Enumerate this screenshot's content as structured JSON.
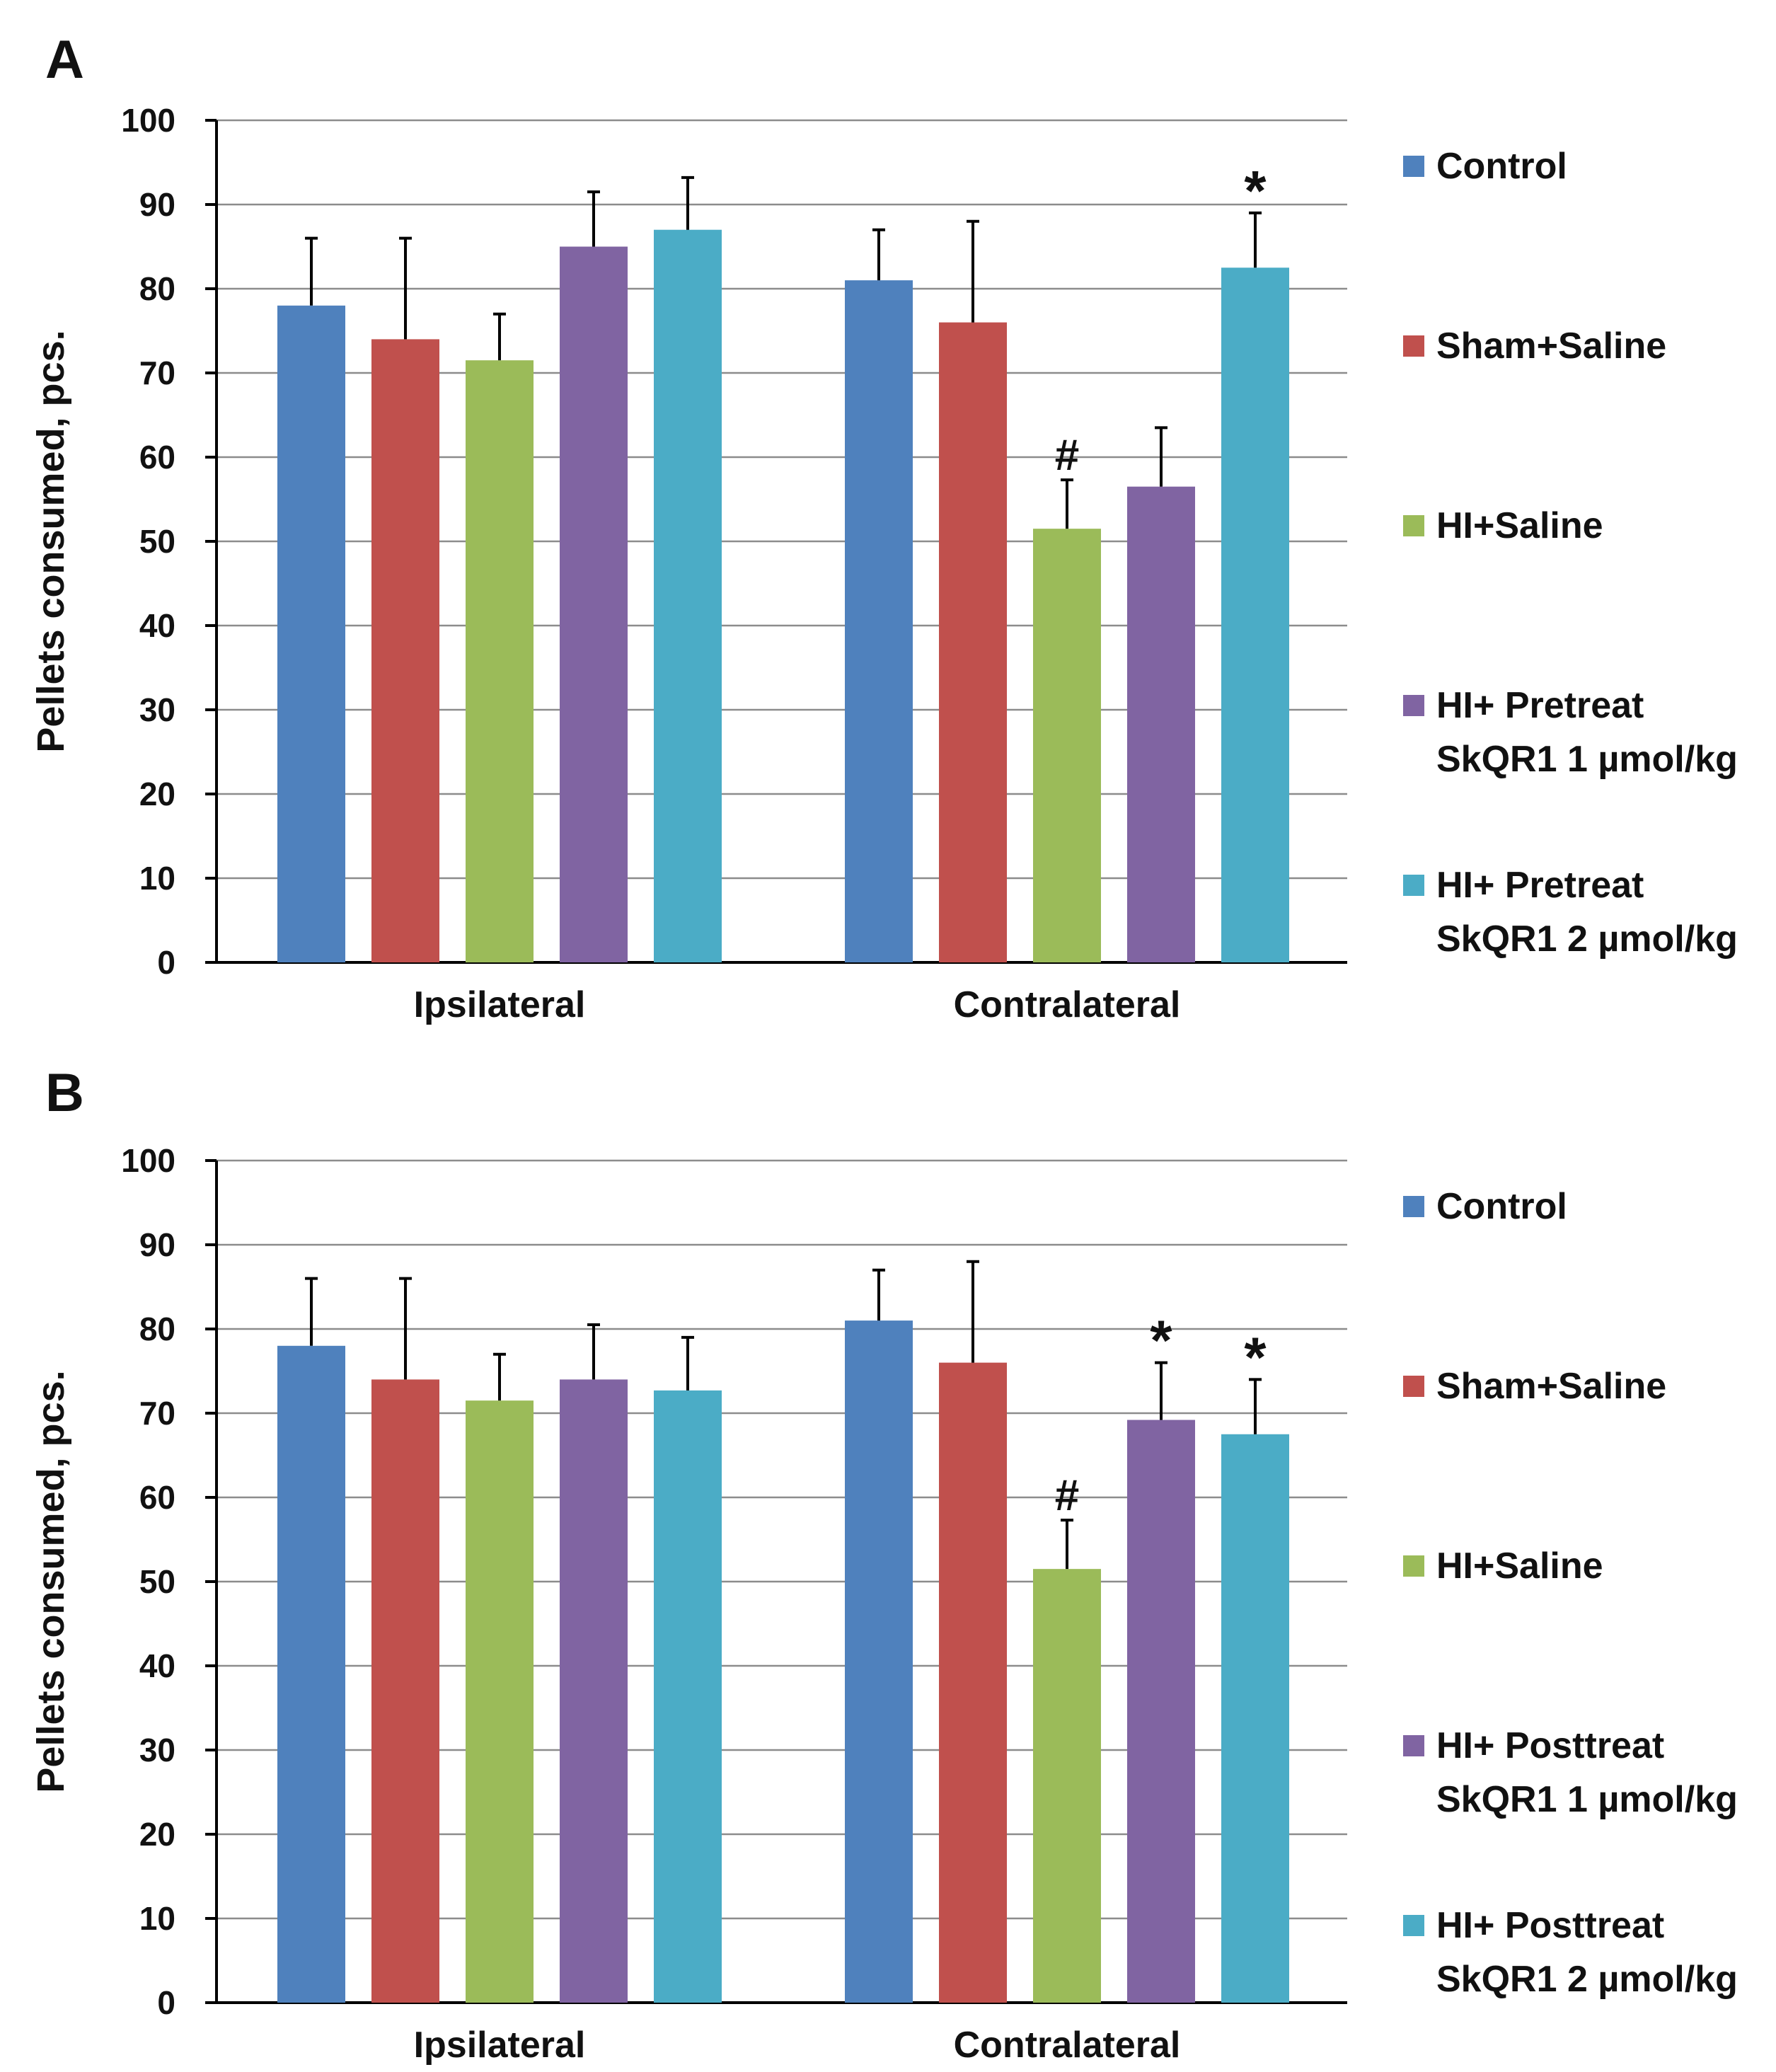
{
  "chart_data": [
    {
      "panel": "A",
      "type": "bar",
      "ylabel": "Pellets consumed, pcs.",
      "ylim": [
        0,
        100
      ],
      "yticks": [
        0,
        10,
        20,
        30,
        40,
        50,
        60,
        70,
        80,
        90,
        100
      ],
      "grid": true,
      "categories": [
        "Ipsilateral",
        "Contralateral"
      ],
      "series": [
        {
          "name": "Control",
          "color": "#4F81BD",
          "values": [
            78,
            81
          ],
          "errors": [
            8,
            6
          ],
          "marks": [
            "",
            ""
          ]
        },
        {
          "name": "Sham+Saline",
          "color": "#C0504D",
          "values": [
            74,
            76
          ],
          "errors": [
            12,
            12
          ],
          "marks": [
            "",
            ""
          ]
        },
        {
          "name": "HI+Saline",
          "color": "#9BBB59",
          "values": [
            71.5,
            51.5
          ],
          "errors": [
            5.5,
            5.8
          ],
          "marks": [
            "",
            "#"
          ]
        },
        {
          "name": "HI+ Pretreat SkQR1 1 µmol/kg",
          "legend_lines": [
            "HI+ Pretreat",
            "SkQR1 1 µmol/kg"
          ],
          "color": "#8064A2",
          "values": [
            85,
            56.5
          ],
          "errors": [
            6.5,
            7
          ],
          "marks": [
            "",
            ""
          ]
        },
        {
          "name": "HI+ Pretreat SkQR1 2 µmol/kg",
          "legend_lines": [
            "HI+ Pretreat",
            "SkQR1 2 µmol/kg"
          ],
          "color": "#4BACC6",
          "values": [
            87,
            82.5
          ],
          "errors": [
            6.2,
            6.5
          ],
          "marks": [
            "",
            "*"
          ]
        }
      ],
      "legend": "right"
    },
    {
      "panel": "B",
      "type": "bar",
      "ylabel": "Pellets consumed, pcs.",
      "ylim": [
        0,
        100
      ],
      "yticks": [
        0,
        10,
        20,
        30,
        40,
        50,
        60,
        70,
        80,
        90,
        100
      ],
      "grid": true,
      "categories": [
        "Ipsilateral",
        "Contralateral"
      ],
      "series": [
        {
          "name": "Control",
          "color": "#4F81BD",
          "values": [
            78,
            81
          ],
          "errors": [
            8,
            6
          ],
          "marks": [
            "",
            ""
          ]
        },
        {
          "name": "Sham+Saline",
          "color": "#C0504D",
          "values": [
            74,
            76
          ],
          "errors": [
            12,
            12
          ],
          "marks": [
            "",
            ""
          ]
        },
        {
          "name": "HI+Saline",
          "color": "#9BBB59",
          "values": [
            71.5,
            51.5
          ],
          "errors": [
            5.5,
            5.8
          ],
          "marks": [
            "",
            "#"
          ]
        },
        {
          "name": "HI+ Posttreat SkQR1 1 µmol/kg",
          "legend_lines": [
            "HI+ Posttreat",
            "SkQR1 1 µmol/kg"
          ],
          "color": "#8064A2",
          "values": [
            74,
            69.2
          ],
          "errors": [
            6.5,
            6.8
          ],
          "marks": [
            "",
            "*"
          ]
        },
        {
          "name": "HI+ Posttreat SkQR1 2 µmol/kg",
          "legend_lines": [
            "HI+ Posttreat",
            "SkQR1 2 µmol/kg"
          ],
          "color": "#4BACC6",
          "values": [
            72.7,
            67.5
          ],
          "errors": [
            6.3,
            6.5
          ],
          "marks": [
            "",
            "*"
          ]
        }
      ],
      "legend": "right"
    }
  ]
}
